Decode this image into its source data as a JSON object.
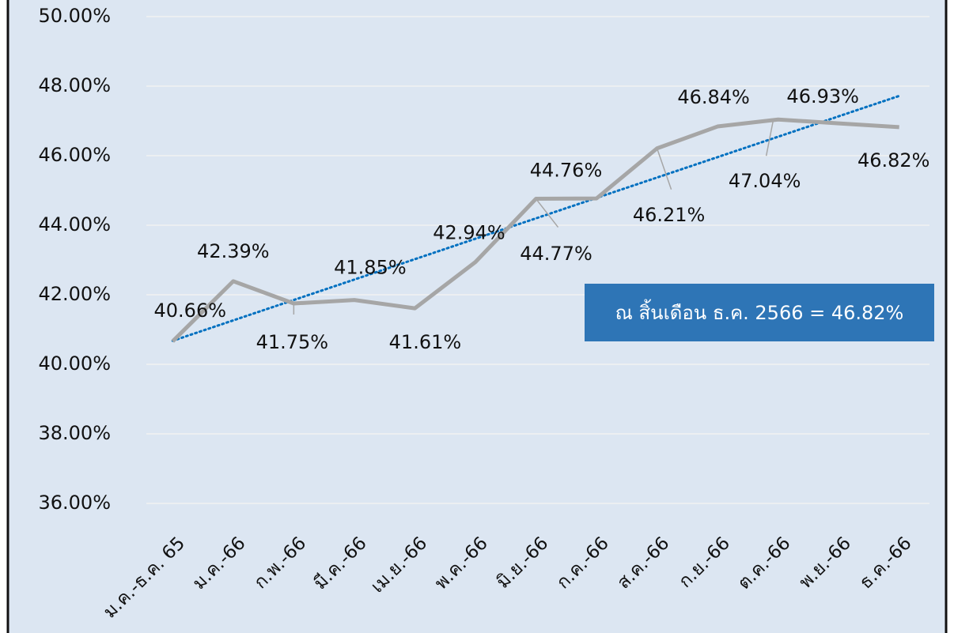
{
  "chart_data": {
    "type": "line",
    "categories": [
      "ม.ค.-ธ.ค. 65",
      "ม.ค.-66",
      "ก.พ.-66",
      "มี.ค.-66",
      "เม.ย.-66",
      "พ.ค.-66",
      "มิ.ย.-66",
      "ก.ค.-66",
      "ส.ค.-66",
      "ก.ย.-66",
      "ต.ค.-66",
      "พ.ย.-66",
      "ธ.ค.-66"
    ],
    "series": [
      {
        "color": "#a6a6a6",
        "values": [
          40.66,
          42.39,
          41.75,
          41.85,
          41.61,
          42.94,
          44.76,
          44.77,
          46.21,
          46.84,
          47.04,
          46.93,
          46.82
        ],
        "value_labels": [
          "40.66%",
          "42.39%",
          "41.75%",
          "41.85%",
          "41.61%",
          "42.94%",
          "44.76%",
          "44.77%",
          "46.21%",
          "46.84%",
          "47.04%",
          "46.93%",
          "46.82%"
        ]
      }
    ],
    "trendline": {
      "type": "linear",
      "color": "#0070c0",
      "style": "dotted"
    },
    "ylim": [
      35.5,
      50
    ],
    "yticks": [
      {
        "value": 36,
        "label": "36.00%"
      },
      {
        "value": 38,
        "label": "38.00%"
      },
      {
        "value": 40,
        "label": "40.00%"
      },
      {
        "value": 42,
        "label": "42.00%"
      },
      {
        "value": 44,
        "label": "44.00%"
      },
      {
        "value": 46,
        "label": "46.00%"
      },
      {
        "value": 48,
        "label": "48.00%"
      },
      {
        "value": 50,
        "label": "50.00%"
      }
    ],
    "grid": true,
    "annotation": {
      "text": "ณ สิ้นเดือน ธ.ค. 2566 = 46.82%",
      "color": "#2e75b6"
    }
  }
}
